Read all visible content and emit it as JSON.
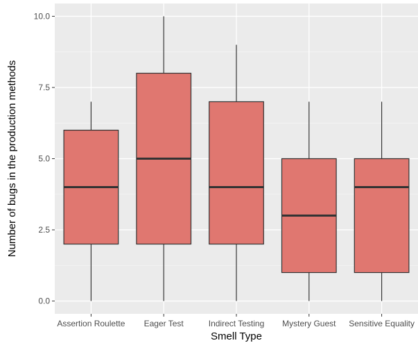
{
  "chart_data": {
    "type": "boxplot",
    "title": "",
    "xlabel": "Smell Type",
    "ylabel": "Number of bugs in the production methods",
    "ylim": [
      -0.45,
      10.45
    ],
    "yticks": [
      0.0,
      2.5,
      5.0,
      7.5,
      10.0
    ],
    "ytick_labels": [
      "0.0",
      "2.5",
      "5.0",
      "7.5",
      "10.0"
    ],
    "grid": true,
    "legend": "none",
    "colors": {
      "panel": "#ebebeb",
      "grid_major": "#ffffff",
      "grid_minor": "#f5f5f5",
      "box_fill": "#e07770",
      "box_stroke": "#333333"
    },
    "categories": [
      "Assertion Roulette",
      "Eager Test",
      "Indirect Testing",
      "Mystery Guest",
      "Sensitive Equality"
    ],
    "boxes": [
      {
        "category": "Assertion Roulette",
        "min": 0,
        "q1": 2,
        "median": 4,
        "q3": 6,
        "max": 7
      },
      {
        "category": "Eager Test",
        "min": 0,
        "q1": 2,
        "median": 5,
        "q3": 8,
        "max": 10
      },
      {
        "category": "Indirect Testing",
        "min": 0,
        "q1": 2,
        "median": 4,
        "q3": 7,
        "max": 9
      },
      {
        "category": "Mystery Guest",
        "min": 0,
        "q1": 1,
        "median": 3,
        "q3": 5,
        "max": 7
      },
      {
        "category": "Sensitive Equality",
        "min": 0,
        "q1": 1,
        "median": 4,
        "q3": 5,
        "max": 7
      }
    ]
  }
}
